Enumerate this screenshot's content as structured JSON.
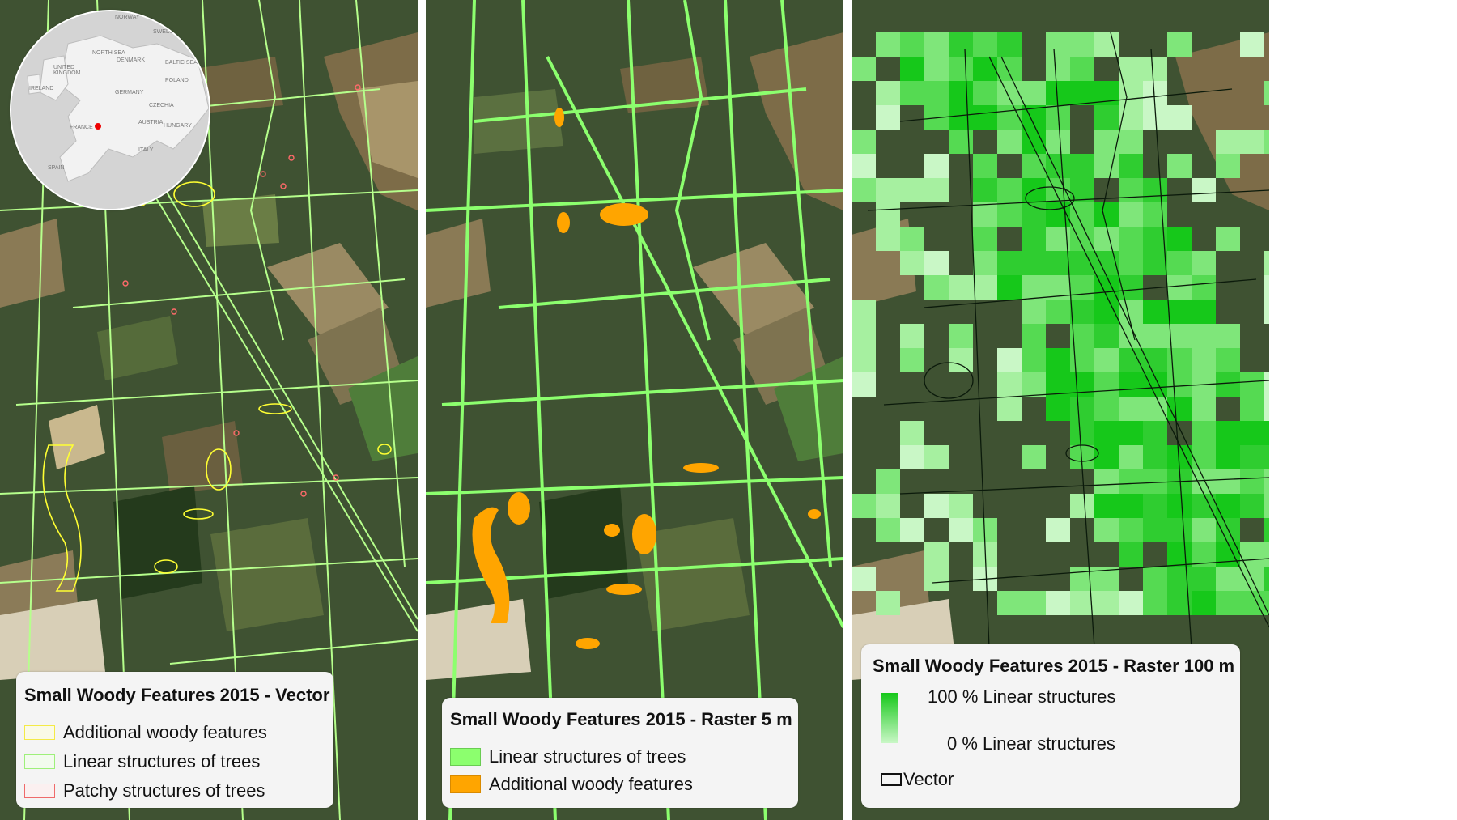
{
  "panels": [
    {
      "legend_title": "Small Woody Features 2015 - Vector",
      "legend_items": [
        {
          "label": "Additional woody features",
          "stroke": "#ffff33"
        },
        {
          "label": "Linear structures of trees",
          "stroke": "#b6ff8c"
        },
        {
          "label": "Patchy structures of trees",
          "stroke": "#ff6a6a"
        }
      ]
    },
    {
      "legend_title": "Small Woody Features 2015 - Raster 5 m",
      "legend_items": [
        {
          "label": "Linear structures of trees",
          "fill": "#8cff6e"
        },
        {
          "label": "Additional woody features",
          "fill": "#ffa500"
        }
      ]
    },
    {
      "legend_title": "Small Woody Features 2015 - Raster 100  m",
      "gradient": {
        "high_label": "100 % Linear structures",
        "low_label": "0 % Linear structures",
        "high_color": "#16c81a",
        "low_color": "#c9f7c6"
      },
      "outline_label": "Vector"
    }
  ],
  "inset_map": {
    "location_marker_color": "#ee0000",
    "labels": [
      "NORWAY",
      "SWEDEN",
      "UNITED KINGDOM",
      "IRELAND",
      "DENMARK",
      "GERMANY",
      "POLAND",
      "CZECHIA",
      "AUSTRIA",
      "HUNGARY",
      "FRANCE",
      "ITALY",
      "SPAIN",
      "NORTH SEA",
      "BALTIC SEA"
    ]
  },
  "colors": {
    "background_imagery": "#3f5232",
    "linear_vector": "#b6ff8c",
    "additional_vector": "#ffff33",
    "patchy_vector": "#ff6a6a",
    "linear_raster": "#8cff6e",
    "additional_raster": "#ffa500"
  }
}
